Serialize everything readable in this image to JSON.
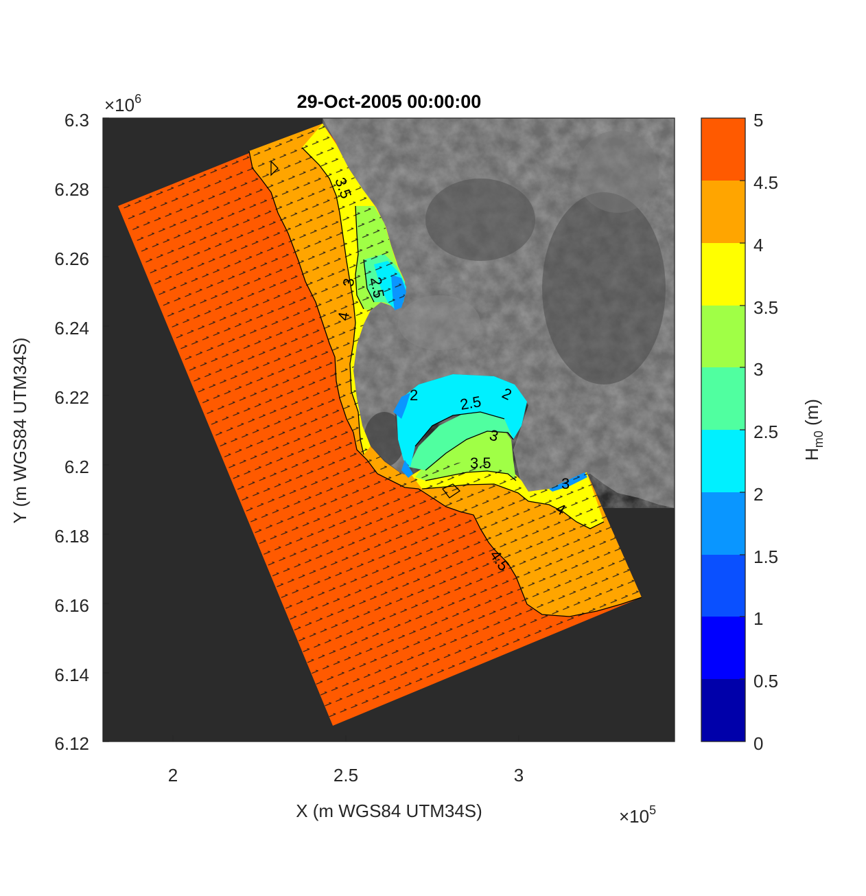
{
  "figure": {
    "title": "29-Oct-2005 00:00:00",
    "xlabel": "X (m WGS84 UTM34S)",
    "ylabel": "Y (m WGS84 UTM34S)",
    "x_exponent_label": "×10",
    "x_exponent_power": "5",
    "y_exponent_label": "×10",
    "y_exponent_power": "6",
    "x_ticks": [
      "2",
      "2.5",
      "3"
    ],
    "y_ticks": [
      "6.3",
      "6.28",
      "6.26",
      "6.24",
      "6.22",
      "6.2",
      "6.18",
      "6.16",
      "6.14",
      "6.12"
    ],
    "colorbar_label_main": "H",
    "colorbar_label_sub": "m0",
    "colorbar_label_unit": " (m)",
    "colorbar_ticks": [
      "5",
      "4.5",
      "4",
      "3.5",
      "3",
      "2.5",
      "2",
      "1.5",
      "1",
      "0.5",
      "0"
    ]
  },
  "chart_data": {
    "type": "heatmap",
    "title": "29-Oct-2005 00:00:00",
    "xlabel": "X (m WGS84 UTM34S)",
    "ylabel": "Y (m WGS84 UTM34S)",
    "xlim": [
      180000,
      345000
    ],
    "ylim": [
      6120000,
      6300000
    ],
    "x_scale_exponent": 5,
    "y_scale_exponent": 6,
    "colorbar": {
      "label": "Hm0 (m)",
      "range": [
        0,
        5
      ],
      "levels": [
        0,
        0.5,
        1,
        1.5,
        2,
        2.5,
        3,
        3.5,
        4,
        4.5,
        5
      ],
      "colors": [
        "#0000aa",
        "#0000ff",
        "#0a50ff",
        "#0a96ff",
        "#00f0ff",
        "#50ffa0",
        "#a0ff46",
        "#ffff00",
        "#ffa500",
        "#ff5a00"
      ]
    },
    "contour_labels": [
      "3.5",
      "4",
      "3",
      "2.5",
      "2",
      "3.5",
      "3",
      "2.5",
      "2",
      "4",
      "4.5",
      "3"
    ],
    "background": "grayscale satellite image, land with dark ocean"
  }
}
